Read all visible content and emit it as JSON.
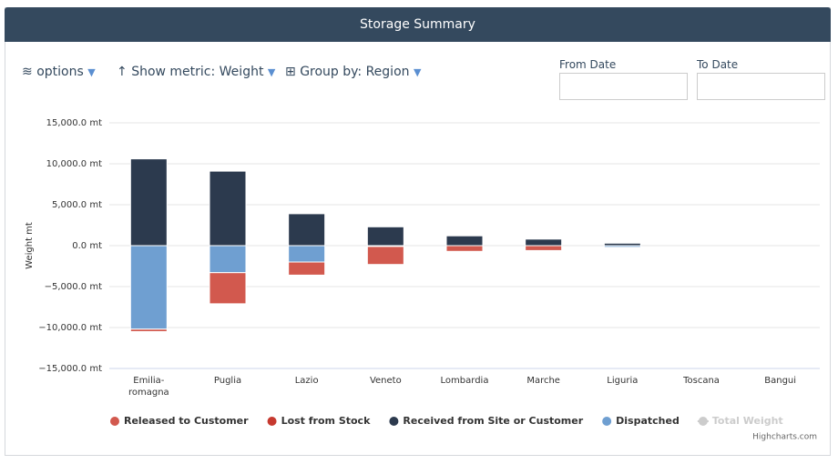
{
  "header": {
    "title": "Storage Summary"
  },
  "toolbar": {
    "options": "options",
    "metric": "Show metric: Weight",
    "group": "Group by: Region"
  },
  "filters": {
    "from_label": "From Date",
    "to_label": "To Date"
  },
  "chart_data": {
    "type": "bar",
    "stacked": true,
    "categories": [
      "Emilia-romagna",
      "Puglia",
      "Lazio",
      "Veneto",
      "Lombardia",
      "Marche",
      "Liguria",
      "Toscana",
      "Bangui"
    ],
    "ylabel": "Weight mt",
    "ylim": [
      -15000,
      15000
    ],
    "yticks": [
      {
        "value": -15000,
        "label": "−15,000.0 mt"
      },
      {
        "value": -10000,
        "label": "−10,000.0 mt"
      },
      {
        "value": -5000,
        "label": "−5,000.0 mt"
      },
      {
        "value": 0,
        "label": "0.0 mt"
      },
      {
        "value": 5000,
        "label": "5,000.0 mt"
      },
      {
        "value": 10000,
        "label": "10,000.0 mt"
      },
      {
        "value": 15000,
        "label": "15,000.0 mt"
      }
    ],
    "grid": true,
    "series": [
      {
        "name": "Dispatched",
        "color": "#6f9fd1",
        "values": [
          -10200,
          -3300,
          -2000,
          -100,
          0,
          0,
          -200,
          0,
          0
        ]
      },
      {
        "name": "Released to Customer",
        "color": "#d2594e",
        "values": [
          -300,
          -3800,
          -1600,
          -2200,
          -700,
          -600,
          0,
          0,
          0
        ]
      },
      {
        "name": "Lost from Stock",
        "color": "#c6392f",
        "values": [
          0,
          0,
          0,
          0,
          0,
          0,
          0,
          0,
          0
        ]
      },
      {
        "name": "Received from Site or Customer",
        "color": "#2c3a4e",
        "values": [
          10600,
          9100,
          3900,
          2300,
          1200,
          800,
          300,
          0,
          0
        ]
      },
      {
        "name": "Total Weight",
        "color": "#cccccc",
        "visible": false
      }
    ],
    "legend_order": [
      1,
      2,
      3,
      0,
      4
    ],
    "credits": "Highcharts.com"
  }
}
